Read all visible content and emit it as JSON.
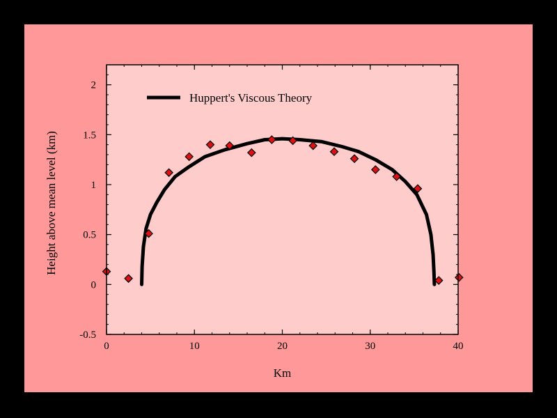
{
  "colors": {
    "background": "#000000",
    "slide": "#ff9999",
    "plot_area": "#ffcccc",
    "marker_fill": "#dd1111",
    "curve": "#000000"
  },
  "chart_data": {
    "type": "scatter",
    "title": "",
    "xlabel": "Km",
    "ylabel": "Height above mean level (km)",
    "xlim": [
      0,
      40
    ],
    "ylim": [
      -0.5,
      2.2
    ],
    "xticks": [
      0,
      10,
      20,
      30,
      40
    ],
    "yticks": [
      -0.5,
      0,
      0.5,
      1,
      1.5,
      2
    ],
    "xtick_labels": [
      "0",
      "10",
      "20",
      "30",
      "40"
    ],
    "ytick_labels": [
      "-0.5",
      "0",
      "0.5",
      "1",
      "1.5",
      "2"
    ],
    "grid": false,
    "legend": {
      "position": "top-left",
      "entries": [
        "Huppert's Viscous Theory"
      ]
    },
    "series": [
      {
        "name": "Huppert's Viscous Theory",
        "kind": "line",
        "x": [
          4.0,
          4.05,
          4.2,
          4.5,
          5.0,
          5.7,
          6.6,
          7.8,
          9.4,
          11.2,
          13.5,
          16.0,
          18.0,
          20.0,
          22.0,
          24.5,
          26.8,
          28.7,
          30.6,
          32.5,
          34.0,
          35.3,
          36.4,
          36.9,
          37.15,
          37.25,
          37.3
        ],
        "y": [
          0.0,
          0.18,
          0.38,
          0.56,
          0.7,
          0.82,
          0.95,
          1.08,
          1.18,
          1.28,
          1.35,
          1.41,
          1.45,
          1.46,
          1.45,
          1.43,
          1.38,
          1.33,
          1.25,
          1.15,
          1.03,
          0.9,
          0.7,
          0.5,
          0.3,
          0.12,
          0.0
        ]
      },
      {
        "name": "",
        "kind": "markers",
        "x": [
          0.0,
          2.5,
          4.8,
          7.1,
          9.4,
          11.8,
          14.0,
          16.5,
          18.8,
          21.2,
          23.5,
          25.9,
          28.2,
          30.6,
          33.0,
          35.4,
          37.8,
          40.1
        ],
        "y": [
          0.13,
          0.06,
          0.51,
          1.12,
          1.28,
          1.4,
          1.39,
          1.32,
          1.45,
          1.44,
          1.39,
          1.33,
          1.26,
          1.15,
          1.08,
          0.96,
          0.04,
          0.07
        ]
      }
    ]
  }
}
